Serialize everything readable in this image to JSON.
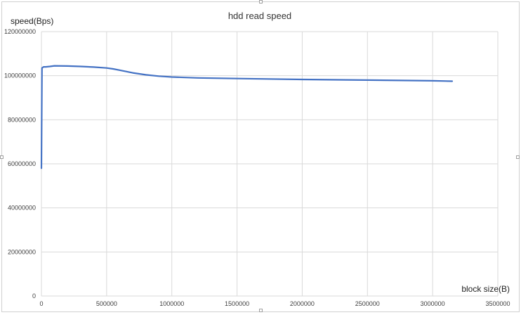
{
  "chart_data": {
    "type": "line",
    "title": "hdd read speed",
    "xlabel": "block size(B)",
    "ylabel": "speed(Bps)",
    "xlim": [
      0,
      3500000
    ],
    "ylim": [
      0,
      120000000
    ],
    "x_ticks": [
      "0",
      "500000",
      "1000000",
      "1500000",
      "2000000",
      "2500000",
      "3000000",
      "3500000"
    ],
    "y_ticks": [
      "0",
      "20000000",
      "40000000",
      "60000000",
      "80000000",
      "100000000",
      "120000000"
    ],
    "grid": true,
    "legend": "none",
    "series": [
      {
        "color": "#4472c4",
        "x": [
          0,
          4096,
          16384,
          32768,
          65536,
          100000,
          200000,
          300000,
          400000,
          500000,
          550000,
          600000,
          700000,
          800000,
          900000,
          1000000,
          1200000,
          1500000,
          2000000,
          2500000,
          3000000,
          3150000
        ],
        "y": [
          58000000,
          103500000,
          104000000,
          104000000,
          104200000,
          104500000,
          104400000,
          104200000,
          103900000,
          103500000,
          103100000,
          102500000,
          101300000,
          100400000,
          99800000,
          99400000,
          99000000,
          98700000,
          98300000,
          98000000,
          97700000,
          97500000
        ]
      }
    ]
  }
}
